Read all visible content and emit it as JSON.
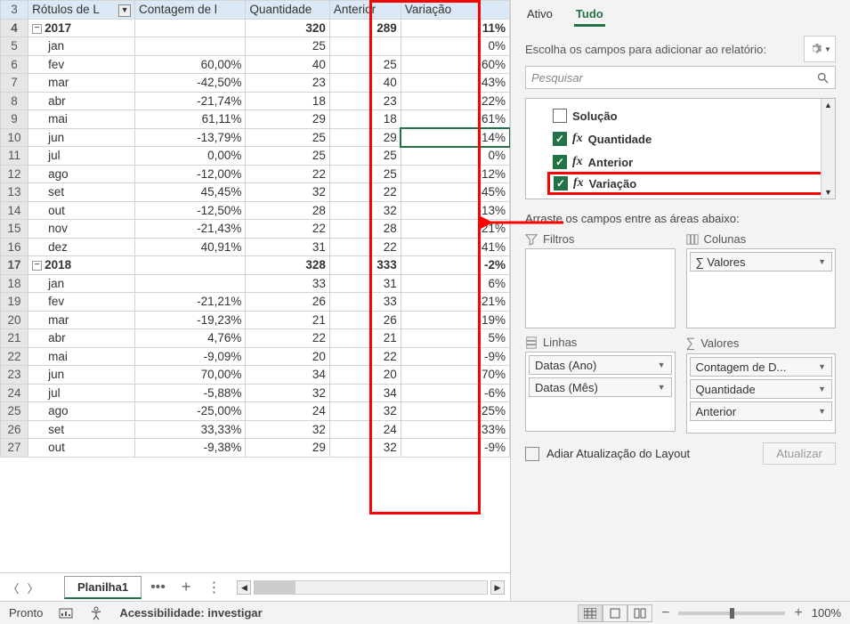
{
  "headers": {
    "rowLabel": "Rótulos de L",
    "contagem": "Contagem de l",
    "quantidade": "Quantidade",
    "anterior": "Anterior",
    "variacao": "Variação"
  },
  "rows": [
    {
      "n": 3,
      "type": "header"
    },
    {
      "n": 4,
      "type": "year",
      "label": "2017",
      "b": "",
      "q": "320",
      "ant": "289",
      "var": "11%"
    },
    {
      "n": 5,
      "type": "m",
      "label": "jan",
      "b": "",
      "q": "25",
      "ant": "",
      "var": "0%"
    },
    {
      "n": 6,
      "type": "m",
      "label": "fev",
      "b": "60,00%",
      "q": "40",
      "ant": "25",
      "var": "60%"
    },
    {
      "n": 7,
      "type": "m",
      "label": "mar",
      "b": "-42,50%",
      "q": "23",
      "ant": "40",
      "var": "-43%"
    },
    {
      "n": 8,
      "type": "m",
      "label": "abr",
      "b": "-21,74%",
      "q": "18",
      "ant": "23",
      "var": "-22%"
    },
    {
      "n": 9,
      "type": "m",
      "label": "mai",
      "b": "61,11%",
      "q": "29",
      "ant": "18",
      "var": "61%"
    },
    {
      "n": 10,
      "type": "m",
      "label": "jun",
      "b": "-13,79%",
      "q": "25",
      "ant": "29",
      "var": "-14%",
      "sel": true
    },
    {
      "n": 11,
      "type": "m",
      "label": "jul",
      "b": "0,00%",
      "q": "25",
      "ant": "25",
      "var": "0%"
    },
    {
      "n": 12,
      "type": "m",
      "label": "ago",
      "b": "-12,00%",
      "q": "22",
      "ant": "25",
      "var": "-12%"
    },
    {
      "n": 13,
      "type": "m",
      "label": "set",
      "b": "45,45%",
      "q": "32",
      "ant": "22",
      "var": "45%"
    },
    {
      "n": 14,
      "type": "m",
      "label": "out",
      "b": "-12,50%",
      "q": "28",
      "ant": "32",
      "var": "-13%"
    },
    {
      "n": 15,
      "type": "m",
      "label": "nov",
      "b": "-21,43%",
      "q": "22",
      "ant": "28",
      "var": "-21%"
    },
    {
      "n": 16,
      "type": "m",
      "label": "dez",
      "b": "40,91%",
      "q": "31",
      "ant": "22",
      "var": "41%"
    },
    {
      "n": 17,
      "type": "year",
      "label": "2018",
      "b": "",
      "q": "328",
      "ant": "333",
      "var": "-2%"
    },
    {
      "n": 18,
      "type": "m",
      "label": "jan",
      "b": "",
      "q": "33",
      "ant": "31",
      "var": "6%"
    },
    {
      "n": 19,
      "type": "m",
      "label": "fev",
      "b": "-21,21%",
      "q": "26",
      "ant": "33",
      "var": "-21%"
    },
    {
      "n": 20,
      "type": "m",
      "label": "mar",
      "b": "-19,23%",
      "q": "21",
      "ant": "26",
      "var": "-19%"
    },
    {
      "n": 21,
      "type": "m",
      "label": "abr",
      "b": "4,76%",
      "q": "22",
      "ant": "21",
      "var": "5%"
    },
    {
      "n": 22,
      "type": "m",
      "label": "mai",
      "b": "-9,09%",
      "q": "20",
      "ant": "22",
      "var": "-9%"
    },
    {
      "n": 23,
      "type": "m",
      "label": "jun",
      "b": "70,00%",
      "q": "34",
      "ant": "20",
      "var": "70%"
    },
    {
      "n": 24,
      "type": "m",
      "label": "jul",
      "b": "-5,88%",
      "q": "32",
      "ant": "34",
      "var": "-6%"
    },
    {
      "n": 25,
      "type": "m",
      "label": "ago",
      "b": "-25,00%",
      "q": "24",
      "ant": "32",
      "var": "-25%"
    },
    {
      "n": 26,
      "type": "m",
      "label": "set",
      "b": "33,33%",
      "q": "32",
      "ant": "24",
      "var": "33%"
    },
    {
      "n": 27,
      "type": "m",
      "label": "out",
      "b": "-9,38%",
      "q": "29",
      "ant": "32",
      "var": "-9%"
    }
  ],
  "sheetTab": "Planilha1",
  "pane": {
    "tabs": {
      "ativo": "Ativo",
      "tudo": "Tudo"
    },
    "desc": "Escolha os campos para adicionar ao relatório:",
    "search": "Pesquisar",
    "fields": [
      {
        "label": "Solução",
        "fx": false,
        "checked": false
      },
      {
        "label": "Quantidade",
        "fx": true,
        "checked": true
      },
      {
        "label": "Anterior",
        "fx": true,
        "checked": true
      },
      {
        "label": "Variação",
        "fx": true,
        "checked": true,
        "hl": true
      }
    ],
    "dragText": "Arraste os campos entre as áreas abaixo:",
    "areas": {
      "filtros": "Filtros",
      "colunas": "Colunas",
      "linhas": "Linhas",
      "valores": "Valores"
    },
    "chips": {
      "colunas": [
        "∑ Valores"
      ],
      "linhas": [
        "Datas (Ano)",
        "Datas (Mês)"
      ],
      "valores": [
        "Contagem de D...",
        "Quantidade",
        "Anterior"
      ]
    },
    "defer": "Adiar Atualização do Layout",
    "update": "Atualizar"
  },
  "status": {
    "pronto": "Pronto",
    "acc": "Acessibilidade: investigar",
    "zoom": "100%"
  }
}
